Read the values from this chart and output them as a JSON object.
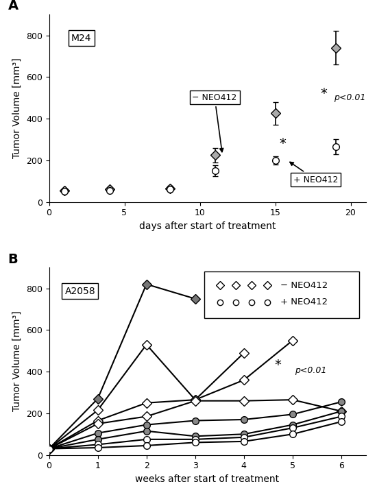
{
  "panel_A": {
    "title": "M24",
    "xlabel": "days after start of treatment",
    "ylabel": "Tumor Volume [mm³]",
    "xlim": [
      0,
      21
    ],
    "ylim": [
      0,
      900
    ],
    "yticks": [
      0,
      200,
      400,
      600,
      800
    ],
    "xticks": [
      0,
      5,
      10,
      15,
      20
    ],
    "neg_neo412": {
      "x": [
        1,
        4,
        8,
        11,
        15,
        19
      ],
      "y": [
        55,
        60,
        65,
        225,
        425,
        740
      ],
      "yerr": [
        10,
        10,
        12,
        35,
        55,
        80
      ],
      "marker": "D",
      "markersize": 7,
      "markerfacecolor": "#aaaaaa",
      "markeredgecolor": "#000000",
      "linecolor": "#000000"
    },
    "pos_neo412": {
      "x": [
        1,
        4,
        8,
        11,
        15,
        19
      ],
      "y": [
        50,
        55,
        60,
        150,
        200,
        265
      ],
      "yerr": [
        8,
        8,
        10,
        25,
        20,
        35
      ],
      "marker": "o",
      "markersize": 7,
      "markerfacecolor": "#ffffff",
      "markeredgecolor": "#000000",
      "linecolor": "#000000"
    }
  },
  "panel_B": {
    "title": "A2058",
    "xlabel": "weeks after start of treatment",
    "ylabel": "Tumor Volume [mm³]",
    "xlim": [
      0,
      6.5
    ],
    "ylim": [
      0,
      900
    ],
    "yticks": [
      0,
      200,
      400,
      600,
      800
    ],
    "xticks": [
      0,
      1,
      2,
      3,
      4,
      5,
      6
    ],
    "neg_neo412_lines": [
      {
        "x": [
          0,
          1,
          2,
          3
        ],
        "y": [
          30,
          270,
          820,
          750
        ],
        "filled": true
      },
      {
        "x": [
          0,
          1,
          2,
          3,
          4
        ],
        "y": [
          30,
          215,
          530,
          265,
          490
        ],
        "filled": false
      },
      {
        "x": [
          0,
          1,
          2,
          3,
          4,
          5
        ],
        "y": [
          30,
          165,
          250,
          265,
          360,
          550
        ],
        "filled": false
      },
      {
        "x": [
          0,
          1,
          2,
          3,
          4,
          5,
          6
        ],
        "y": [
          30,
          150,
          185,
          260,
          260,
          265,
          210
        ],
        "filled": false
      }
    ],
    "pos_neo412_lines": [
      {
        "x": [
          0,
          1,
          2,
          3,
          4,
          5,
          6
        ],
        "y": [
          30,
          105,
          145,
          165,
          170,
          195,
          255
        ],
        "filled": true
      },
      {
        "x": [
          0,
          1,
          2,
          3,
          4,
          5,
          6
        ],
        "y": [
          30,
          75,
          115,
          90,
          100,
          145,
          210
        ],
        "filled": true
      },
      {
        "x": [
          0,
          1,
          2,
          3,
          4,
          5,
          6
        ],
        "y": [
          30,
          50,
          75,
          75,
          85,
          130,
          185
        ],
        "filled": false
      },
      {
        "x": [
          0,
          1,
          2,
          3,
          4,
          5,
          6
        ],
        "y": [
          30,
          35,
          45,
          60,
          65,
          100,
          160
        ],
        "filled": false
      }
    ]
  },
  "background_color": "#ffffff"
}
